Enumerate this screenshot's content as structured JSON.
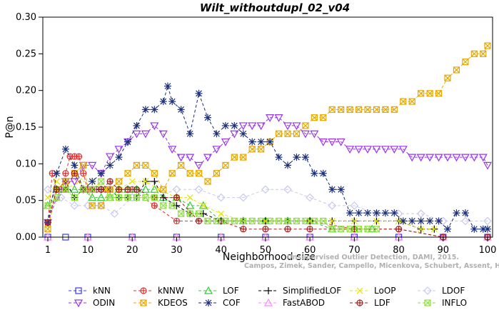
{
  "chart_data": {
    "type": "line",
    "title": "Wilt_withoutdupl_02_v04",
    "xlabel": "Neighborhood size",
    "ylabel": "P@n",
    "xlim": [
      1,
      100
    ],
    "ylim": [
      0,
      0.3
    ],
    "x_ticks": [
      1,
      10,
      20,
      30,
      40,
      50,
      60,
      70,
      80,
      90,
      100
    ],
    "x_tick_labels": [
      "1",
      "10",
      "20",
      "30",
      "40",
      "50",
      "60",
      "70",
      "80",
      "90",
      "100"
    ],
    "y_ticks": [
      0.0,
      0.05,
      0.1,
      0.15,
      0.2,
      0.25,
      0.3
    ],
    "y_tick_labels": [
      "0.00",
      "0.05",
      "0.10",
      "0.15",
      "0.20",
      "0.25",
      "0.30"
    ],
    "legend_position": "bottom",
    "watermark": [
      "Unsupervised Outlier Detection, DAMI, 2015.",
      "Campos, Zimek, Sander, Campello, Micenkova, Schubert, Assent, Houle"
    ],
    "series": [
      {
        "name": "kNN",
        "color": "#3a3aee",
        "marker": "square",
        "x": [
          1,
          5,
          10,
          20,
          30,
          40,
          50,
          60,
          70,
          80,
          90,
          100
        ],
        "y": [
          0,
          0,
          0,
          0,
          0,
          0,
          0,
          0,
          0,
          0,
          0,
          0
        ]
      },
      {
        "name": "kNNW",
        "color": "#e03030",
        "marker": "circle-plus",
        "x": [
          1,
          2,
          3,
          4,
          5,
          6,
          7,
          8,
          9,
          10,
          11,
          12,
          13,
          14,
          15,
          20,
          25,
          30,
          40,
          50,
          60,
          70,
          80,
          90,
          100
        ],
        "y": [
          0.02,
          0.087,
          0.065,
          0.065,
          0.087,
          0.11,
          0.11,
          0.11,
          0.087,
          0.065,
          0.065,
          0.065,
          0.065,
          0.065,
          0.065,
          0.065,
          0.043,
          0.022,
          0.022,
          0.022,
          0.022,
          0.011,
          0.011,
          0,
          0
        ]
      },
      {
        "name": "LOF",
        "color": "#33cc33",
        "marker": "triangle-up",
        "x": [
          1,
          3,
          5,
          7,
          9,
          11,
          13,
          15,
          17,
          19,
          21,
          23,
          25,
          27,
          30,
          33,
          36,
          40,
          45,
          50,
          55,
          60,
          65,
          70,
          74
        ],
        "y": [
          0.043,
          0.065,
          0.065,
          0.065,
          0.065,
          0.054,
          0.054,
          0.054,
          0.065,
          0.065,
          0.065,
          0.065,
          0.065,
          0.054,
          0.054,
          0.043,
          0.043,
          0.022,
          0.022,
          0.022,
          0.022,
          0.022,
          0.011,
          0.011,
          0.011
        ]
      },
      {
        "name": "SimplifiedLOF",
        "color": "#000000",
        "marker": "plus",
        "x": [
          1,
          3,
          5,
          7,
          9,
          11,
          13,
          15,
          17,
          19,
          21,
          23,
          25,
          27,
          30,
          33,
          36,
          40,
          45,
          50,
          55,
          60,
          65,
          70,
          75,
          80,
          85,
          88
        ],
        "y": [
          0.02,
          0.065,
          0.076,
          0.054,
          0.065,
          0.065,
          0.065,
          0.065,
          0.054,
          0.054,
          0.054,
          0.076,
          0.076,
          0.054,
          0.043,
          0.032,
          0.032,
          0.022,
          0.022,
          0.022,
          0.022,
          0.022,
          0.022,
          0.022,
          0.022,
          0.022,
          0.011,
          0.011
        ]
      },
      {
        "name": "LoOP",
        "color": "#e6e600",
        "marker": "cross",
        "x": [
          1,
          3,
          5,
          8,
          11,
          14,
          17,
          20,
          23,
          26,
          30,
          33,
          36,
          40,
          45,
          50,
          55,
          60,
          65,
          70,
          75,
          80,
          85,
          88
        ],
        "y": [
          0.054,
          0.076,
          0.065,
          0.076,
          0.076,
          0.065,
          0.065,
          0.076,
          0.076,
          0.065,
          0.054,
          0.054,
          0.043,
          0.032,
          0.022,
          0.022,
          0.022,
          0.022,
          0.022,
          0.022,
          0.022,
          0.022,
          0.011,
          0.011
        ]
      },
      {
        "name": "LDOF",
        "color": "#c8c8f0",
        "marker": "diamond",
        "x": [
          1,
          4,
          7,
          10,
          13,
          16,
          20,
          25,
          30,
          35,
          40,
          45,
          50,
          55,
          60,
          65,
          70,
          75,
          80,
          85,
          90,
          95,
          100
        ],
        "y": [
          0.065,
          0.054,
          0.043,
          0.043,
          0.043,
          0.032,
          0.054,
          0.054,
          0.065,
          0.065,
          0.054,
          0.054,
          0.065,
          0.065,
          0.054,
          0.043,
          0.043,
          0.032,
          0.032,
          0.032,
          0.022,
          0.022,
          0.022
        ]
      },
      {
        "name": "ODIN",
        "color": "#9933ee",
        "marker": "triangle-down",
        "x": [
          1,
          3,
          5,
          7,
          9,
          11,
          13,
          15,
          17,
          19,
          21,
          23,
          25,
          27,
          29,
          31,
          33,
          35,
          37,
          39,
          41,
          43,
          45,
          47,
          49,
          51,
          53,
          55,
          57,
          59,
          61,
          63,
          65,
          67,
          69,
          71,
          73,
          75,
          77,
          79,
          81,
          83,
          85,
          87,
          89,
          91,
          93,
          95,
          97,
          99,
          100
        ],
        "y": [
          0.02,
          0.054,
          0.076,
          0.076,
          0.098,
          0.098,
          0.087,
          0.11,
          0.12,
          0.13,
          0.141,
          0.141,
          0.152,
          0.141,
          0.12,
          0.109,
          0.109,
          0.098,
          0.109,
          0.12,
          0.13,
          0.141,
          0.152,
          0.152,
          0.152,
          0.163,
          0.163,
          0.152,
          0.152,
          0.141,
          0.141,
          0.13,
          0.13,
          0.13,
          0.12,
          0.12,
          0.12,
          0.12,
          0.12,
          0.12,
          0.12,
          0.109,
          0.109,
          0.109,
          0.109,
          0.109,
          0.109,
          0.109,
          0.109,
          0.109,
          0.098
        ]
      },
      {
        "name": "KDEOS",
        "color": "#e6a800",
        "marker": "square-x",
        "x": [
          1,
          3,
          5,
          7,
          9,
          11,
          13,
          15,
          17,
          19,
          21,
          23,
          25,
          27,
          29,
          31,
          33,
          35,
          37,
          39,
          41,
          43,
          45,
          47,
          49,
          51,
          53,
          55,
          57,
          59,
          61,
          63,
          65,
          67,
          69,
          71,
          73,
          75,
          77,
          79,
          81,
          83,
          85,
          87,
          89,
          91,
          93,
          95,
          97,
          99,
          100
        ],
        "y": [
          0.011,
          0.065,
          0.076,
          0.087,
          0.098,
          0.043,
          0.043,
          0.065,
          0.076,
          0.087,
          0.098,
          0.098,
          0.087,
          0.065,
          0.087,
          0.098,
          0.087,
          0.087,
          0.076,
          0.087,
          0.098,
          0.109,
          0.109,
          0.12,
          0.12,
          0.13,
          0.141,
          0.141,
          0.141,
          0.152,
          0.163,
          0.163,
          0.174,
          0.174,
          0.174,
          0.174,
          0.174,
          0.174,
          0.174,
          0.174,
          0.185,
          0.185,
          0.196,
          0.196,
          0.196,
          0.217,
          0.228,
          0.239,
          0.25,
          0.25,
          0.261
        ]
      },
      {
        "name": "COF",
        "color": "#1a2e7a",
        "marker": "asterisk",
        "x": [
          1,
          3,
          5,
          7,
          9,
          11,
          13,
          15,
          17,
          19,
          21,
          23,
          25,
          27,
          28,
          29,
          31,
          33,
          35,
          37,
          39,
          41,
          43,
          45,
          47,
          49,
          51,
          53,
          55,
          57,
          59,
          61,
          63,
          65,
          67,
          69,
          71,
          73,
          75,
          77,
          79,
          81,
          83,
          85,
          87,
          89,
          91,
          93,
          95,
          97,
          99,
          100
        ],
        "y": [
          0.02,
          0.087,
          0.12,
          0.098,
          0.065,
          0.076,
          0.087,
          0.098,
          0.109,
          0.13,
          0.152,
          0.174,
          0.174,
          0.185,
          0.206,
          0.185,
          0.174,
          0.141,
          0.196,
          0.163,
          0.141,
          0.152,
          0.152,
          0.141,
          0.13,
          0.13,
          0.13,
          0.109,
          0.098,
          0.109,
          0.109,
          0.087,
          0.087,
          0.065,
          0.065,
          0.033,
          0.033,
          0.033,
          0.033,
          0.033,
          0.033,
          0.022,
          0.022,
          0.022,
          0.022,
          0.022,
          0.011,
          0.033,
          0.033,
          0.011,
          0.011,
          0.011
        ]
      },
      {
        "name": "FastABOD",
        "color": "#ff88ff",
        "marker": "triangle-up",
        "x": [
          1,
          10,
          20,
          30,
          40,
          50,
          60,
          70,
          80,
          90,
          100
        ],
        "y": [
          0,
          0,
          0,
          0,
          0,
          0,
          0,
          0,
          0,
          0,
          0
        ]
      },
      {
        "name": "LDF",
        "color": "#a02020",
        "marker": "circle-plus",
        "x": [
          1,
          3,
          5,
          7,
          9,
          11,
          13,
          15,
          17,
          19,
          21,
          25,
          30,
          35,
          40,
          45,
          50,
          55,
          60,
          70,
          80,
          90,
          100
        ],
        "y": [
          0.02,
          0.065,
          0.065,
          0.087,
          0.065,
          0.065,
          0.065,
          0.076,
          0.065,
          0.065,
          0.065,
          0.054,
          0.054,
          0.022,
          0.022,
          0.011,
          0.011,
          0.011,
          0.011,
          0.011,
          0.011,
          0,
          0
        ]
      },
      {
        "name": "INFLO",
        "color": "#8fe040",
        "marker": "square-x",
        "x": [
          1,
          3,
          5,
          7,
          9,
          11,
          13,
          15,
          17,
          19,
          21,
          23,
          25,
          27,
          29,
          31,
          33,
          35,
          37,
          39,
          41,
          43,
          45,
          47,
          49,
          51,
          53,
          55,
          57,
          59,
          61,
          63,
          65,
          67,
          69,
          71,
          73,
          75
        ],
        "y": [
          0.043,
          0.054,
          0.065,
          0.054,
          0.065,
          0.065,
          0.076,
          0.054,
          0.054,
          0.054,
          0.054,
          0.054,
          0.054,
          0.043,
          0.043,
          0.032,
          0.032,
          0.032,
          0.022,
          0.022,
          0.022,
          0.022,
          0.022,
          0.022,
          0.022,
          0.022,
          0.022,
          0.022,
          0.022,
          0.022,
          0.022,
          0.022,
          0.011,
          0.011,
          0.011,
          0.011,
          0.011,
          0.011
        ]
      }
    ],
    "legend_rows": [
      [
        "kNN",
        "kNNW",
        "LOF",
        "SimplifiedLOF",
        "LoOP",
        "LDOF"
      ],
      [
        "ODIN",
        "KDEOS",
        "COF",
        "FastABOD",
        "LDF",
        "INFLO"
      ]
    ]
  }
}
